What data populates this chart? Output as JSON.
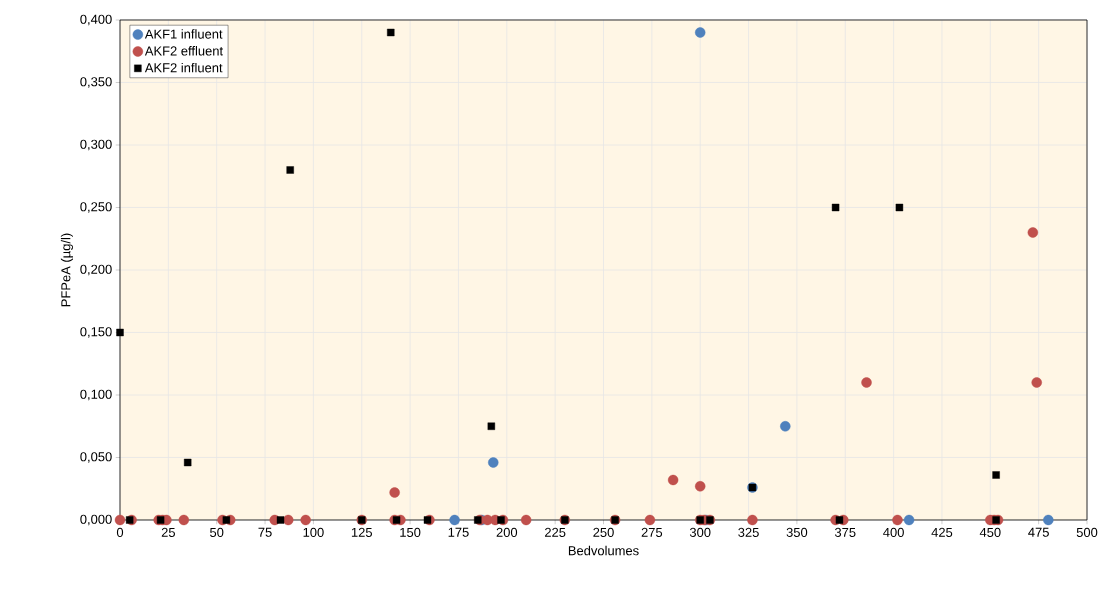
{
  "chart_data": {
    "type": "scatter",
    "xlabel": "Bedvolumes",
    "ylabel": "PFPeA (µg/l)",
    "xlim": [
      0,
      500
    ],
    "ylim": [
      0,
      0.4
    ],
    "xticks": [
      0,
      25,
      50,
      75,
      100,
      125,
      150,
      175,
      200,
      225,
      250,
      275,
      300,
      325,
      350,
      375,
      400,
      425,
      450,
      475,
      500
    ],
    "yticks": [
      {
        "value": 0,
        "label": "0,000"
      },
      {
        "value": 0.05,
        "label": "0,050"
      },
      {
        "value": 0.1,
        "label": "0,100"
      },
      {
        "value": 0.15,
        "label": "0,150"
      },
      {
        "value": 0.2,
        "label": "0,200"
      },
      {
        "value": 0.25,
        "label": "0,250"
      },
      {
        "value": 0.3,
        "label": "0,300"
      },
      {
        "value": 0.35,
        "label": "0,350"
      },
      {
        "value": 0.4,
        "label": "0,400"
      }
    ],
    "grid": true,
    "legend": "top left",
    "series": [
      {
        "name": "AKF1 influent",
        "color": "#4f81bd",
        "marker": "circle",
        "x": [
          173,
          187,
          193,
          300,
          303,
          327,
          344,
          408,
          480
        ],
        "values": [
          0,
          0,
          0.046,
          0.39,
          0,
          0.026,
          0.075,
          0,
          0
        ]
      },
      {
        "name": "AKF2 effluent",
        "color": "#c0504d",
        "marker": "circle",
        "x": [
          0,
          6,
          20,
          22,
          24,
          33,
          53,
          57,
          80,
          87,
          96,
          125,
          142,
          142,
          145,
          160,
          186,
          190,
          194,
          198,
          210,
          230,
          256,
          274,
          286,
          300,
          300,
          302,
          305,
          327,
          370,
          374,
          386,
          402,
          450,
          452,
          454,
          472,
          474
        ],
        "values": [
          0,
          0,
          0,
          0,
          0,
          0,
          0,
          0,
          0,
          0,
          0,
          0,
          0.022,
          0,
          0,
          0,
          0,
          0,
          0,
          0,
          0,
          0,
          0,
          0,
          0.032,
          0.027,
          0,
          0,
          0,
          0,
          0,
          0,
          0.11,
          0,
          0,
          0,
          0,
          0.23,
          0.11
        ]
      },
      {
        "name": "AKF2 influent",
        "color": "#000000",
        "marker": "square",
        "x": [
          0,
          5,
          21,
          35,
          55,
          83,
          88,
          125,
          140,
          143,
          159,
          185,
          192,
          197,
          230,
          256,
          300,
          305,
          327,
          370,
          372,
          403,
          453,
          453
        ],
        "values": [
          0.15,
          0,
          0,
          0.046,
          0,
          0,
          0.28,
          0,
          0.39,
          0,
          0,
          0,
          0.075,
          0,
          0,
          0,
          0,
          0,
          0.026,
          0.25,
          0,
          0.25,
          0.036,
          0
        ]
      }
    ]
  }
}
